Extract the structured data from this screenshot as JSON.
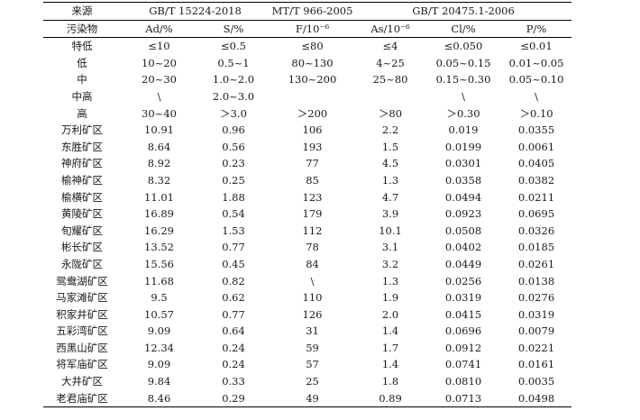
{
  "header_sources": {
    "label": "来源",
    "std1": "GB/T 15224-2018",
    "std2": "MT/T 966-2005",
    "std3": "GB/T  20475.1-2006"
  },
  "columns": [
    "污染物",
    "Ad/%",
    "S/%",
    "F/10⁻⁶",
    "As/10⁻⁶",
    "Cl/%",
    "P/%"
  ],
  "grades": [
    [
      "特低",
      "≤10",
      "≤0.5",
      "≤80",
      "≤4",
      "≤0.050",
      "≤0.01"
    ],
    [
      "低",
      "10~20",
      "0.5~1",
      "80~130",
      "4~25",
      "0.05~0.15",
      "0.01~0.05"
    ],
    [
      "中",
      "20~30",
      "1.0~2.0",
      "130~200",
      "25~80",
      "0.15~0.30",
      "0.05~0.10"
    ],
    [
      "中高",
      "\\",
      "2.0~3.0",
      "",
      "",
      "\\",
      "\\"
    ],
    [
      "高",
      "30~40",
      "＞3.0",
      "＞200",
      "＞80",
      "＞0.30",
      "＞0.10"
    ]
  ],
  "mines": [
    [
      "万利矿区",
      "10.91",
      "0.96",
      "106",
      "2.2",
      "0.019",
      "0.0355"
    ],
    [
      "东胜矿区",
      "8.64",
      "0.56",
      "193",
      "1.5",
      "0.0199",
      "0.0061"
    ],
    [
      "神府矿区",
      "8.92",
      "0.23",
      "77",
      "4.5",
      "0.0301",
      "0.0405"
    ],
    [
      "榆神矿区",
      "8.32",
      "0.25",
      "85",
      "1.3",
      "0.0358",
      "0.0382"
    ],
    [
      "榆横矿区",
      "11.01",
      "1.88",
      "123",
      "4.7",
      "0.0494",
      "0.0211"
    ],
    [
      "黄陵矿区",
      "16.89",
      "0.54",
      "179",
      "3.9",
      "0.0923",
      "0.0695"
    ],
    [
      "旬耀矿区",
      "16.29",
      "1.53",
      "112",
      "10.1",
      "0.0508",
      "0.0326"
    ],
    [
      "彬长矿区",
      "13.52",
      "0.77",
      "78",
      "3.1",
      "0.0402",
      "0.0185"
    ],
    [
      "永陇矿区",
      "15.56",
      "0.45",
      "84",
      "3.2",
      "0.0449",
      "0.0261"
    ],
    [
      "鸳鸯湖矿区",
      "11.68",
      "0.82",
      "\\",
      "1.3",
      "0.0256",
      "0.0138"
    ],
    [
      "马家滩矿区",
      "9.5",
      "0.62",
      "110",
      "1.9",
      "0.0319",
      "0.0276"
    ],
    [
      "积家井矿区",
      "10.57",
      "0.77",
      "126",
      "2.0",
      "0.0415",
      "0.0319"
    ],
    [
      "五彩湾矿区",
      "9.09",
      "0.64",
      "31",
      "1.4",
      "0.0696",
      "0.0079"
    ],
    [
      "西黑山矿区",
      "12.34",
      "0.24",
      "59",
      "1.7",
      "0.0912",
      "0.0221"
    ],
    [
      "将军庙矿区",
      "9.09",
      "0.24",
      "57",
      "1.4",
      "0.0741",
      "0.0161"
    ],
    [
      "大井矿区",
      "9.84",
      "0.33",
      "25",
      "1.8",
      "0.0810",
      "0.0035"
    ],
    [
      "老君庙矿区",
      "8.46",
      "0.29",
      "49",
      "0.89",
      "0.0713",
      "0.0498"
    ]
  ]
}
